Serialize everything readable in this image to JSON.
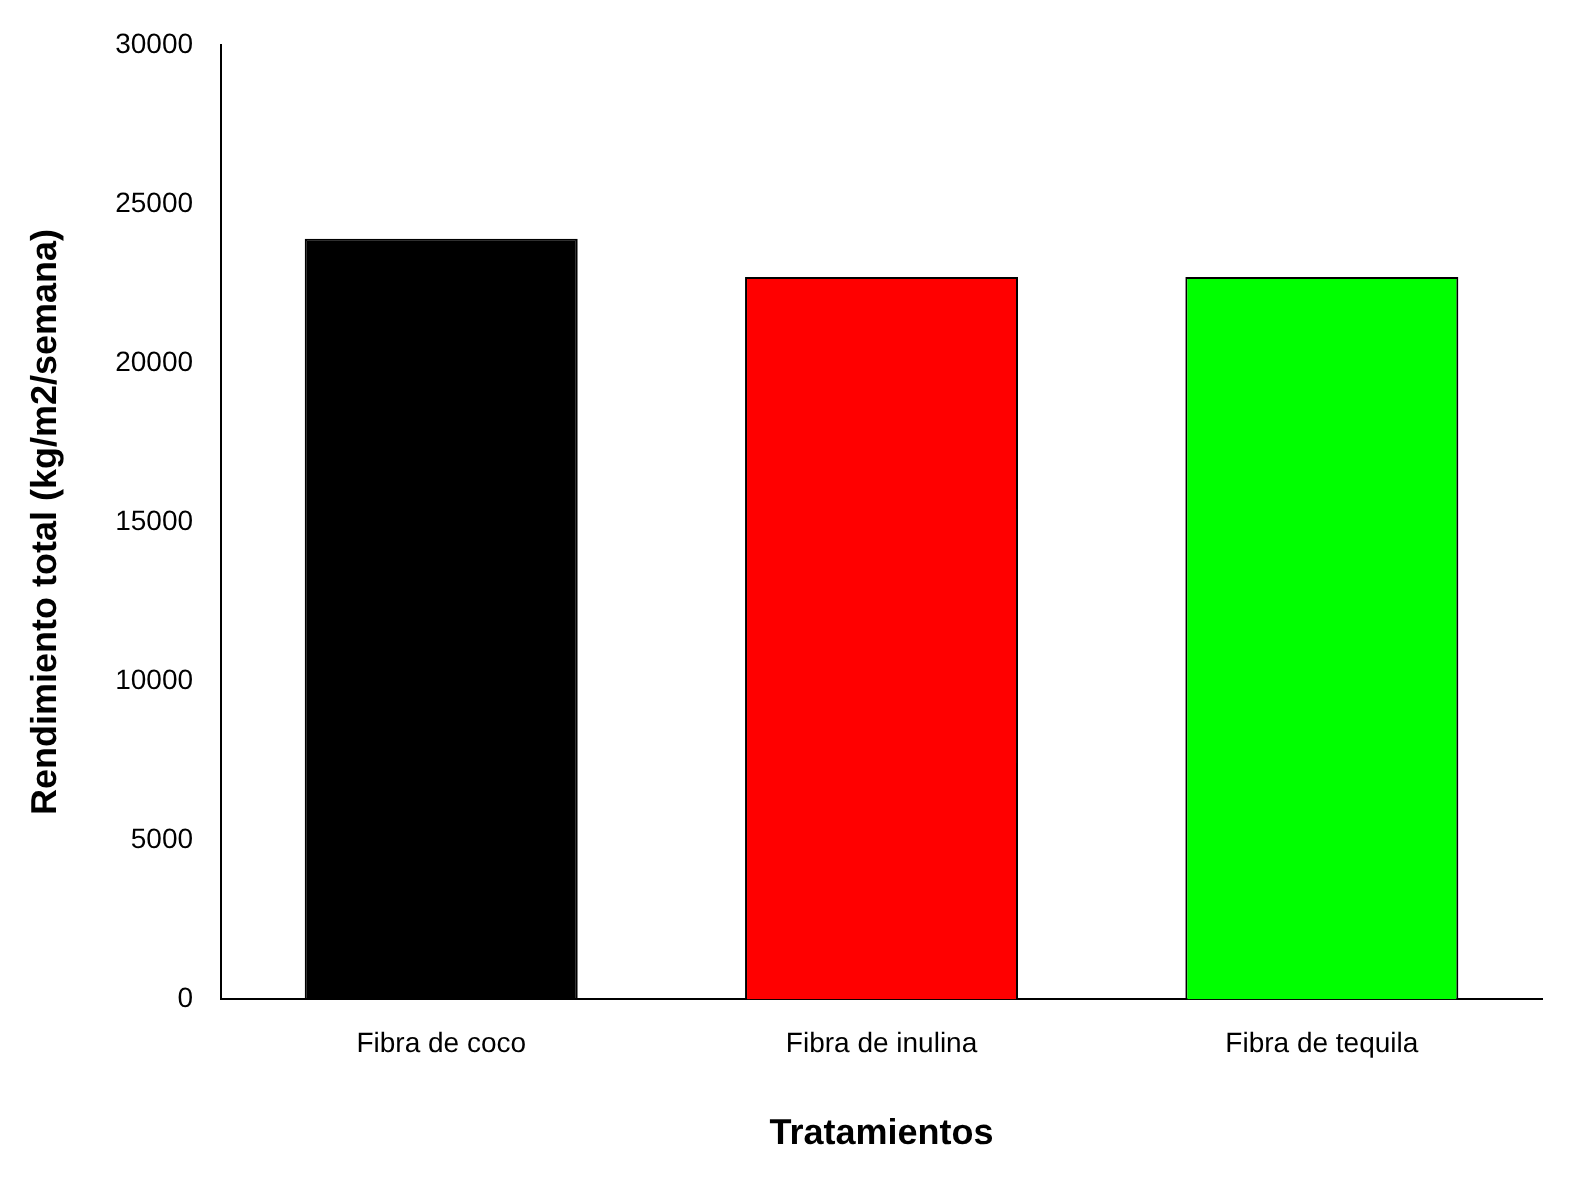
{
  "chart_data": {
    "type": "bar",
    "xlabel": "Tratamientos",
    "ylabel": "Rendimiento total (kg/m2/semana)",
    "categories": [
      "Fibra de coco",
      "Fibra de inulina",
      "Fibra de tequila"
    ],
    "values": [
      23900,
      22700,
      22700
    ],
    "colors": [
      "#000000",
      "#ff0000",
      "#00ff00"
    ],
    "ylim": [
      0,
      30000
    ],
    "yticks": [
      0,
      5000,
      10000,
      15000,
      20000,
      25000,
      30000
    ],
    "grid": false,
    "legend": false
  }
}
